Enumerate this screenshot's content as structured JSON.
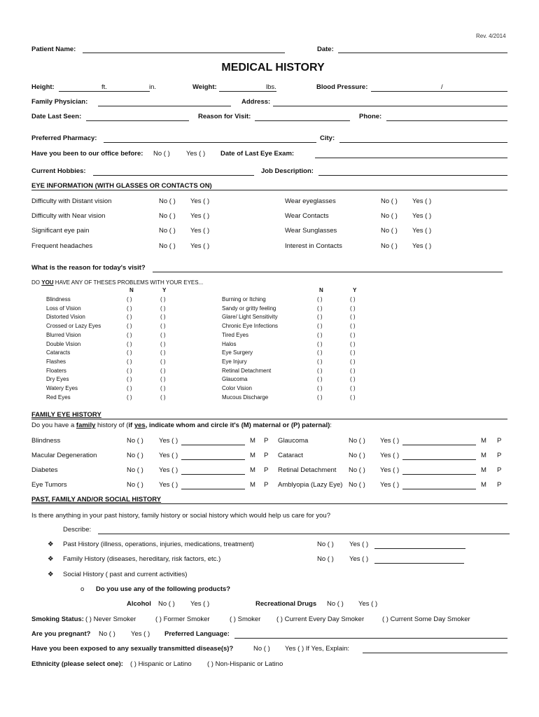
{
  "rev": "Rev. 4/2014",
  "header": {
    "patient_name": "Patient Name:",
    "date": "Date:"
  },
  "title": "MEDICAL HISTORY",
  "fields": {
    "height": "Height:",
    "ft": "ft.",
    "in": "in.",
    "weight": "Weight:",
    "lbs": "lbs.",
    "blood_pressure": "Blood Pressure:",
    "bp_sep": "/",
    "family_physician": "Family Physician:",
    "address": "Address:",
    "date_last_seen": "Date Last Seen:",
    "reason_for_visit": "Reason for Visit:",
    "phone": "Phone:",
    "preferred_pharmacy": "Preferred Pharmacy:",
    "city": "City:",
    "office_before": "Have you been to our office before:",
    "no": "No (  )",
    "yes": "Yes (  )",
    "last_eye_exam": "Date of Last Eye Exam:",
    "hobbies": "Current Hobbies:",
    "job": "Job Description:"
  },
  "eye_info": {
    "heading": "EYE INFORMATION (WITH GLASSES OR CONTACTS ON)",
    "left": [
      "Difficulty with Distant vision",
      "Difficulty with Near vision",
      "Significant eye pain",
      "Frequent headaches"
    ],
    "right": [
      "Wear eyeglasses",
      "Wear Contacts",
      "Wear Sunglasses",
      "Interest in Contacts"
    ],
    "no": "No (  )",
    "yes": "Yes (  )",
    "reason_question": "What is the reason for today's visit?"
  },
  "problems": {
    "heading_pre": "DO ",
    "heading_you": "YOU",
    "heading_post": " HAVE ANY OF THESES PROBLEMS WITH YOUR EYES...",
    "n": "N",
    "y": "Y",
    "box": "(   )",
    "left": [
      "Blindness",
      "Loss of Vision",
      "Distorted Vision",
      "Crossed or Lazy Eyes",
      "Blurred Vision",
      "Double Vision",
      "Cataracts",
      "Flashes",
      "Floaters",
      "Dry Eyes",
      "Watery Eyes",
      "Red Eyes"
    ],
    "right": [
      "Burning or Itching",
      "Sandy or gritty feeling",
      "Glare/ Light Sensitivity",
      "Chronic Eye Infections",
      "Tired Eyes",
      "Halos",
      "Eye Surgery",
      "Eye Injury",
      "Retinal Detachment",
      "Glaucoma",
      "Color Vision",
      "Mucous Discharge"
    ]
  },
  "family": {
    "heading": "FAMILY EYE HISTORY",
    "q_pre": "Do you have a ",
    "q_family": "family",
    "q_mid": " history of (",
    "q_if": "if ",
    "q_yes": "yes",
    "q_post": ", indicate whom and circle it's (M) maternal or (P) paternal)",
    "q_end": ":",
    "left": [
      "Blindness",
      "Macular Degeneration",
      "Diabetes",
      "Eye Tumors"
    ],
    "right": [
      "Glaucoma",
      "Cataract",
      "Retinal Detachment",
      "Amblyopia (Lazy Eye)"
    ],
    "no": "No (  )",
    "yes": "Yes (  )",
    "m": "M",
    "p": "P"
  },
  "past": {
    "heading": "PAST, FAMILY AND/OR SOCIAL HISTORY",
    "question": "Is there anything in your past history, family history or social history which would help us care for you?",
    "describe": "Describe:",
    "bullet": "❖",
    "past_history": "Past History (illness, operations, injuries, medications, treatment)",
    "family_history": "Family History (diseases, hereditary, risk factors, etc.)",
    "social_history": "Social History ( past and current activities)",
    "sub_bullet": "o",
    "products_q": "Do you use any of the following products?",
    "alcohol": "Alcohol",
    "drugs": "Recreational Drugs",
    "no": "No (  )",
    "yes": "Yes (  )"
  },
  "smoking": {
    "label": "Smoking Status:",
    "options": [
      "(    ) Never Smoker",
      "(    ) Former Smoker",
      "(    ) Smoker",
      "(    ) Current Every Day Smoker",
      "(    ) Current Some Day Smoker"
    ]
  },
  "pregnant": {
    "label": "Are you pregnant?",
    "no": "No (  )",
    "yes": "Yes (  )",
    "language": "Preferred Language:"
  },
  "std": {
    "label": "Have you been exposed to any sexually transmitted disease(s)?",
    "no": "No (  )",
    "yes": "Yes (  ) If Yes, Explain:"
  },
  "ethnicity": {
    "label": "Ethnicity (please select one):",
    "options": [
      "(    ) Hispanic or Latino",
      "(    ) Non-Hispanic or Latino"
    ]
  }
}
